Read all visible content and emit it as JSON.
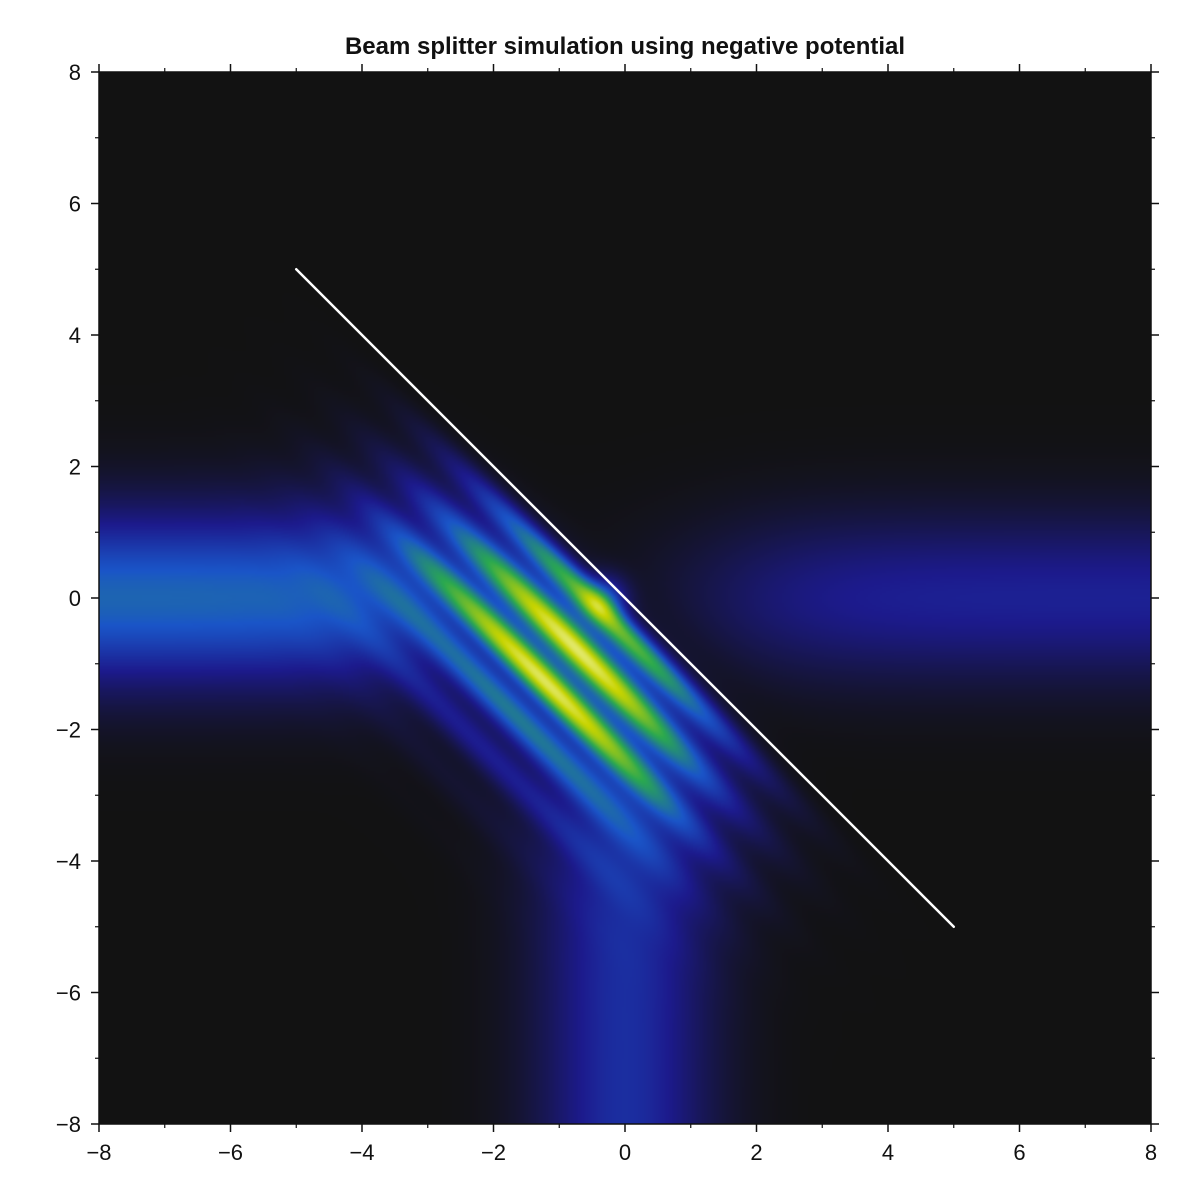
{
  "chart_data": {
    "type": "heatmap",
    "title": "Beam splitter simulation using negative potential",
    "xlabel": "",
    "ylabel": "",
    "xlim": [
      -8,
      8
    ],
    "ylim": [
      -8,
      8
    ],
    "x_ticks": [
      -8,
      -6,
      -4,
      -2,
      0,
      2,
      4,
      6,
      8
    ],
    "y_ticks": [
      -8,
      -6,
      -4,
      -2,
      0,
      2,
      4,
      6,
      8
    ],
    "x_tick_labels": [
      "−8",
      "−6",
      "−4",
      "−2",
      "0",
      "2",
      "4",
      "6",
      "8"
    ],
    "y_tick_labels": [
      "−8",
      "−6",
      "−4",
      "−2",
      "0",
      "2",
      "4",
      "6",
      "8"
    ],
    "minor_tick_step": 1,
    "grid": false,
    "colormap": [
      "#121212",
      "#1c1a8c",
      "#1a55c8",
      "#2aa850",
      "#c8d400",
      "#ffffe0"
    ],
    "splitter_line": {
      "x": [
        -5,
        5
      ],
      "y": [
        5,
        -5
      ],
      "color": "#ffffff"
    },
    "features": {
      "incoming_beam": {
        "direction": "left to center",
        "axis_y": 0,
        "width": 1.3,
        "peak": 0.42
      },
      "transmitted_beam": {
        "direction": "center to right",
        "axis_y": 0,
        "width": 1.25,
        "peak": 0.22
      },
      "reflected_beam": {
        "direction": "center to bottom",
        "axis_x": 0,
        "width": 1.3,
        "peak": 0.26
      },
      "interference_peak": {
        "x": -0.3,
        "y": 0.0,
        "value": 1.0
      }
    }
  }
}
